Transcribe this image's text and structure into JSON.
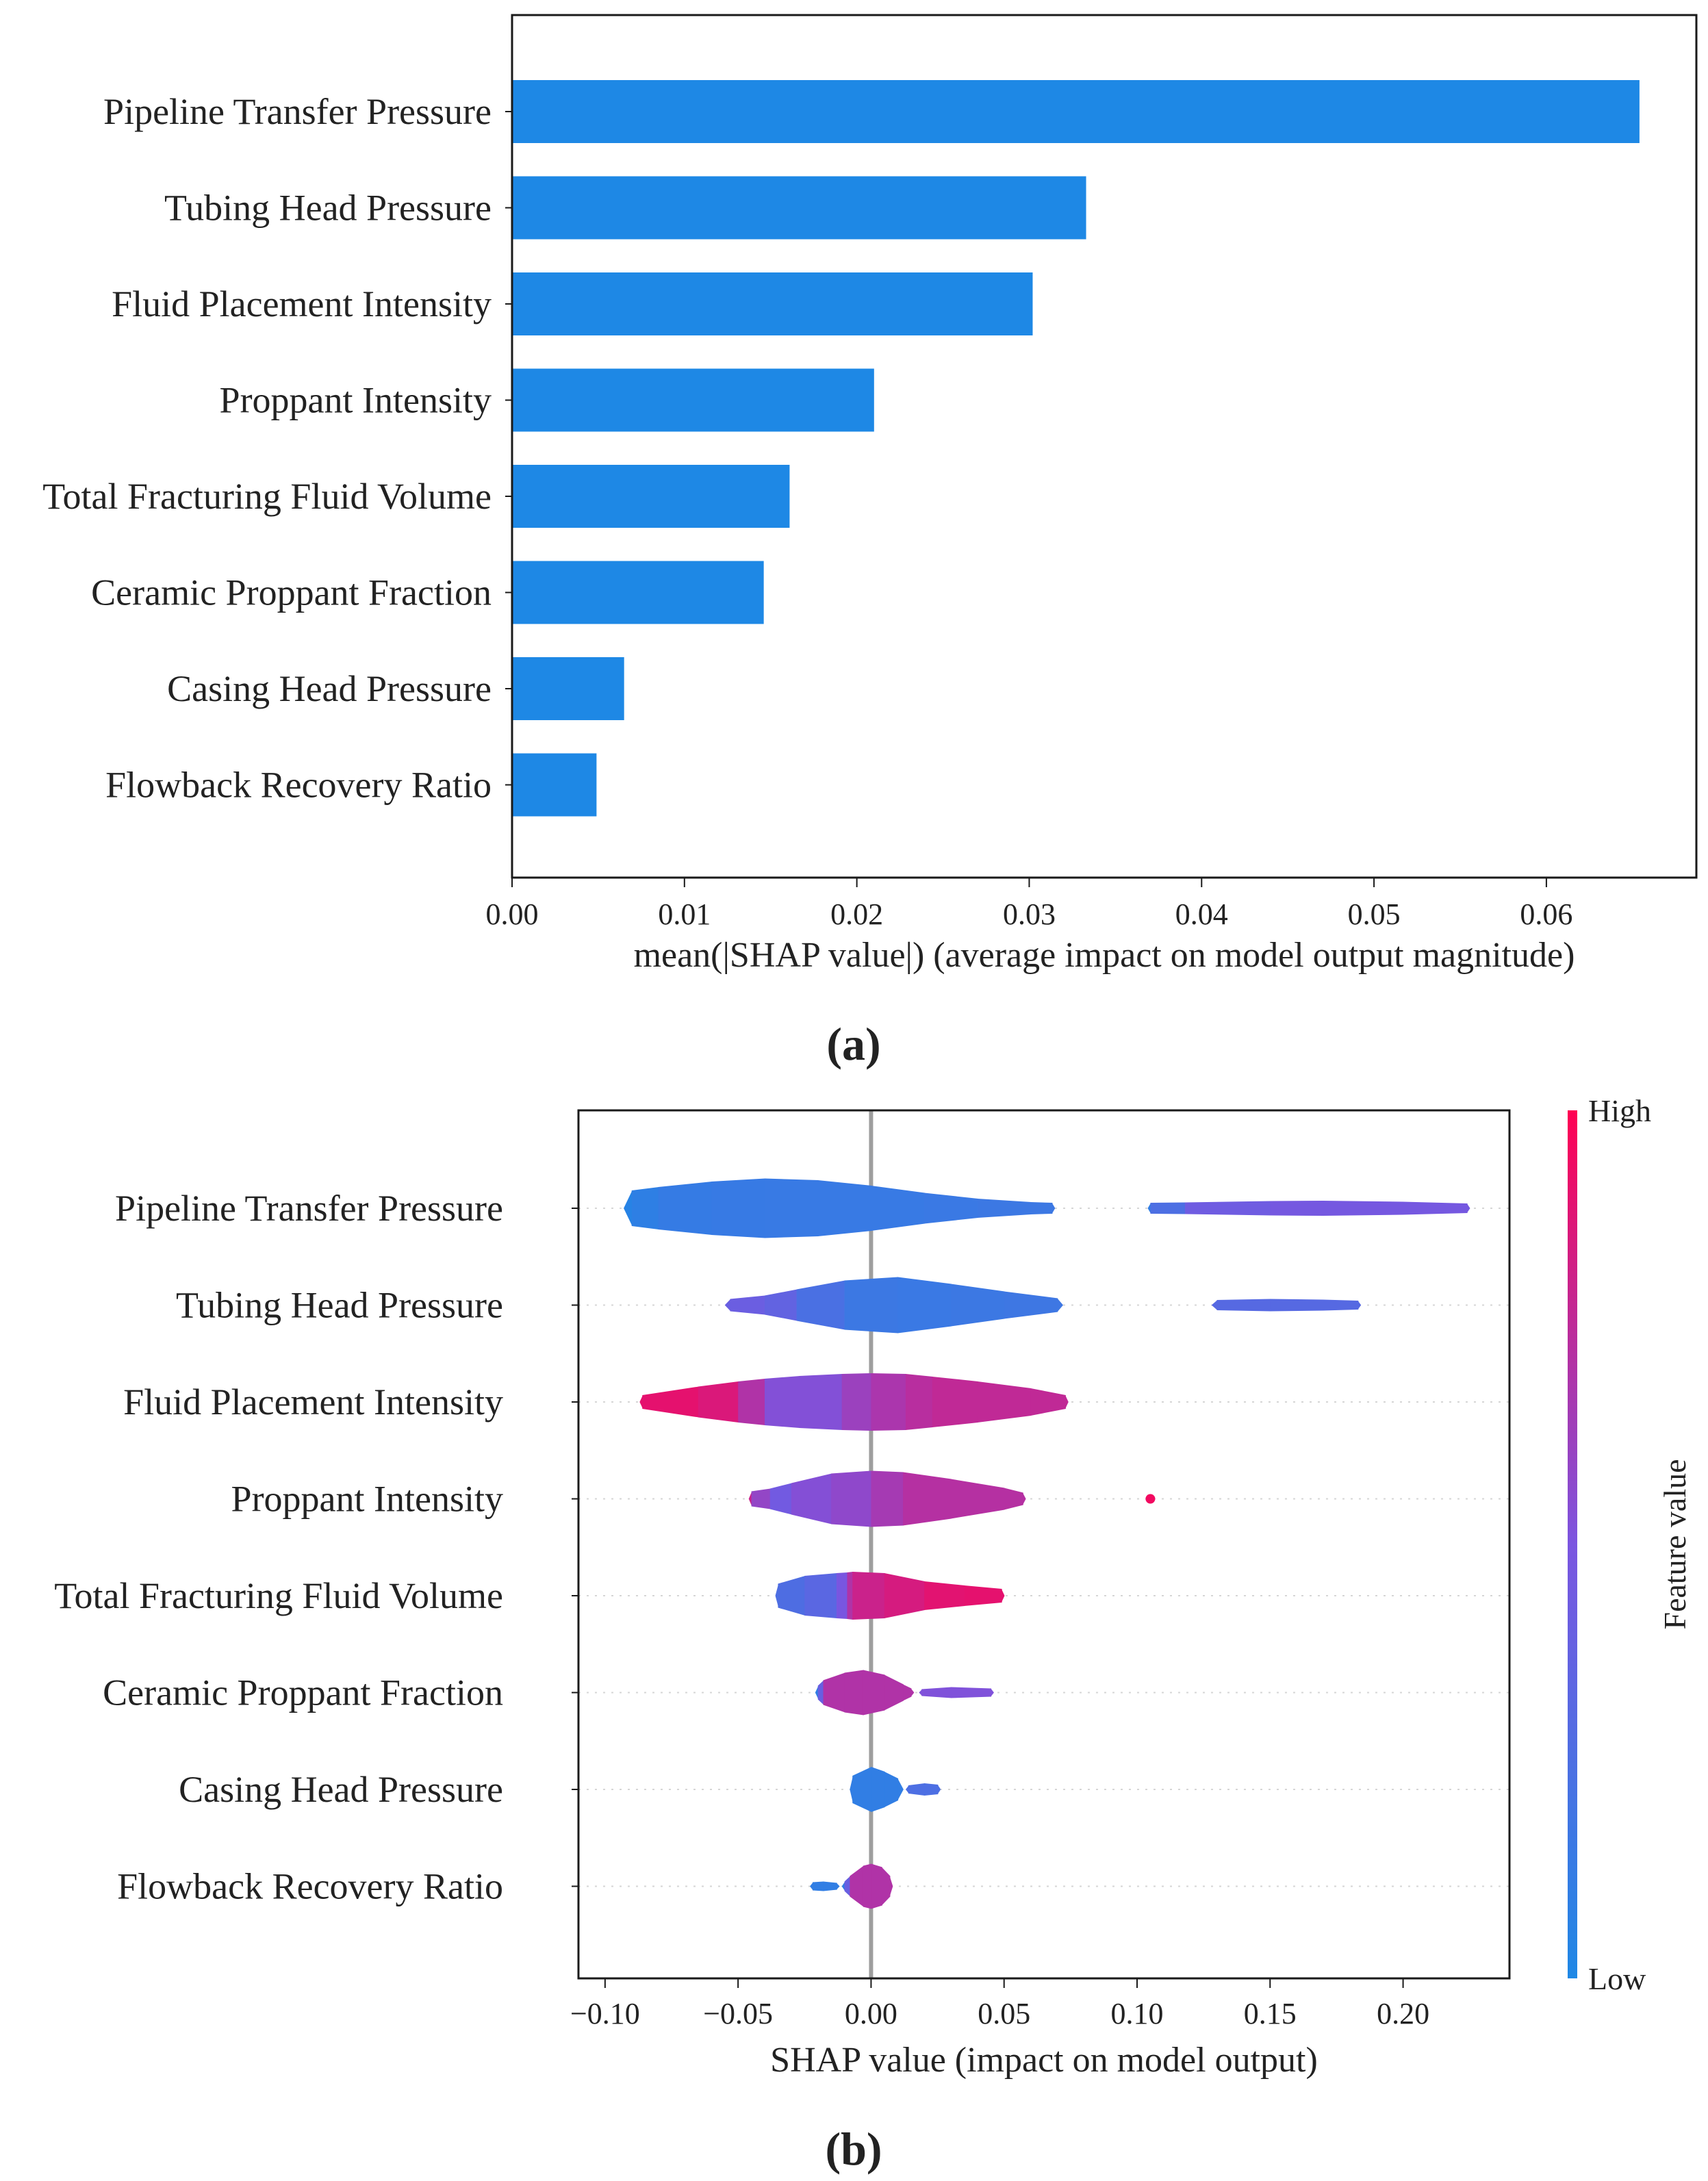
{
  "chart_data": [
    {
      "type": "bar",
      "orientation": "horizontal",
      "panel_label": "(a)",
      "categories": [
        "Pipeline Transfer Pressure",
        "Tubing Head Pressure",
        "Fluid Placement Intensity",
        "Proppant Intensity",
        "Total Fracturing Fluid Volume",
        "Ceramic Proppant Fraction",
        "Casing Head Pressure",
        "Flowback Recovery Ratio"
      ],
      "values": [
        0.0654,
        0.0333,
        0.0302,
        0.021,
        0.0161,
        0.0146,
        0.0065,
        0.0049
      ],
      "xlabel": "mean(|SHAP value|) (average impact on model output magnitude)",
      "ylabel": "",
      "xlim": [
        0,
        0.0687
      ],
      "xticks": [
        "0.00",
        "0.01",
        "0.02",
        "0.03",
        "0.04",
        "0.05",
        "0.06"
      ],
      "bar_color": "#1e88e5"
    },
    {
      "type": "violin",
      "panel_label": "(b)",
      "categories": [
        "Pipeline Transfer Pressure",
        "Tubing Head Pressure",
        "Fluid Placement Intensity",
        "Proppant Intensity",
        "Total Fracturing Fluid Volume",
        "Ceramic Proppant Fraction",
        "Casing Head Pressure",
        "Flowback Recovery Ratio"
      ],
      "xlabel": "SHAP value (impact on model output)",
      "xlim": [
        -0.11,
        0.24
      ],
      "xticks": [
        "−0.10",
        "−0.05",
        "0.00",
        "0.05",
        "0.10",
        "0.15",
        "0.20"
      ],
      "colorbar": {
        "label": "Feature value",
        "high_label": "High",
        "low_label": "Low",
        "low_color": "#1e88e5",
        "high_color": "#ff0052"
      },
      "violins": [
        [
          {
            "x": -0.093,
            "w": 0.0,
            "c": 0.05
          },
          {
            "x": -0.09,
            "w": 0.52,
            "c": 0.05
          },
          {
            "x": -0.08,
            "w": 0.62,
            "c": 0.12
          },
          {
            "x": -0.06,
            "w": 0.78,
            "c": 0.13
          },
          {
            "x": -0.04,
            "w": 0.87,
            "c": 0.14
          },
          {
            "x": -0.02,
            "w": 0.82,
            "c": 0.14
          },
          {
            "x": 0.0,
            "w": 0.66,
            "c": 0.14
          },
          {
            "x": 0.02,
            "w": 0.45,
            "c": 0.14
          },
          {
            "x": 0.04,
            "w": 0.28,
            "c": 0.16
          },
          {
            "x": 0.06,
            "w": 0.18,
            "c": 0.16
          },
          {
            "x": 0.068,
            "w": 0.16,
            "c": 0.16
          },
          {
            "x": 0.069,
            "w": 0.0,
            "c": 0.16
          }
        ],
        [
          {
            "x": 0.104,
            "w": 0.0,
            "c": 0.1
          },
          {
            "x": 0.105,
            "w": 0.16,
            "c": 0.1
          },
          {
            "x": 0.118,
            "w": 0.17,
            "c": 0.4
          },
          {
            "x": 0.15,
            "w": 0.21,
            "c": 0.47
          },
          {
            "x": 0.17,
            "w": 0.22,
            "c": 0.47
          },
          {
            "x": 0.2,
            "w": 0.19,
            "c": 0.47
          },
          {
            "x": 0.224,
            "w": 0.14,
            "c": 0.47
          },
          {
            "x": 0.225,
            "w": 0.0,
            "c": 0.47
          }
        ],
        [
          {
            "x": -0.055,
            "w": 0.0,
            "c": 0.4
          },
          {
            "x": -0.053,
            "w": 0.18,
            "c": 0.4
          },
          {
            "x": -0.04,
            "w": 0.28,
            "c": 0.43
          },
          {
            "x": -0.028,
            "w": 0.46,
            "c": 0.3
          },
          {
            "x": -0.01,
            "w": 0.72,
            "c": 0.17
          },
          {
            "x": 0.01,
            "w": 0.82,
            "c": 0.15
          },
          {
            "x": 0.03,
            "w": 0.62,
            "c": 0.15
          },
          {
            "x": 0.05,
            "w": 0.4,
            "c": 0.17
          },
          {
            "x": 0.07,
            "w": 0.2,
            "c": 0.17
          },
          {
            "x": 0.072,
            "w": 0.0,
            "c": 0.17
          }
        ],
        [
          {
            "x": 0.128,
            "w": 0.0,
            "c": 0.3
          },
          {
            "x": 0.13,
            "w": 0.15,
            "c": 0.3
          },
          {
            "x": 0.15,
            "w": 0.18,
            "c": 0.3
          },
          {
            "x": 0.17,
            "w": 0.16,
            "c": 0.3
          },
          {
            "x": 0.183,
            "w": 0.13,
            "c": 0.3
          },
          {
            "x": 0.184,
            "w": 0.0,
            "c": 0.3
          }
        ],
        [
          {
            "x": -0.087,
            "w": 0.0,
            "c": 0.9
          },
          {
            "x": -0.086,
            "w": 0.2,
            "c": 0.9
          },
          {
            "x": -0.065,
            "w": 0.45,
            "c": 0.9
          },
          {
            "x": -0.05,
            "w": 0.6,
            "c": 0.82
          },
          {
            "x": -0.04,
            "w": 0.68,
            "c": 0.58
          },
          {
            "x": -0.027,
            "w": 0.76,
            "c": 0.48
          },
          {
            "x": -0.011,
            "w": 0.82,
            "c": 0.58
          },
          {
            "x": 0.0,
            "w": 0.84,
            "c": 0.66
          },
          {
            "x": 0.013,
            "w": 0.82,
            "c": 0.7
          },
          {
            "x": 0.023,
            "w": 0.74,
            "c": 0.76
          },
          {
            "x": 0.04,
            "w": 0.6,
            "c": 0.76
          },
          {
            "x": 0.06,
            "w": 0.4,
            "c": 0.76
          },
          {
            "x": 0.073,
            "w": 0.2,
            "c": 0.76
          },
          {
            "x": 0.074,
            "w": 0.0,
            "c": 0.76
          }
        ],
        [
          {
            "x": -0.046,
            "w": 0.0,
            "c": 0.8
          },
          {
            "x": -0.045,
            "w": 0.22,
            "c": 0.8
          },
          {
            "x": -0.038,
            "w": 0.3,
            "c": 0.38
          },
          {
            "x": -0.03,
            "w": 0.46,
            "c": 0.52
          },
          {
            "x": -0.015,
            "w": 0.74,
            "c": 0.55
          },
          {
            "x": 0.0,
            "w": 0.82,
            "c": 0.6
          },
          {
            "x": 0.012,
            "w": 0.78,
            "c": 0.72
          },
          {
            "x": 0.03,
            "w": 0.58,
            "c": 0.72
          },
          {
            "x": 0.05,
            "w": 0.32,
            "c": 0.72
          },
          {
            "x": 0.057,
            "w": 0.18,
            "c": 0.72
          },
          {
            "x": 0.058,
            "w": 0.0,
            "c": 0.72
          }
        ],
        [
          {
            "x": -0.036,
            "w": 0.0,
            "c": 0.25
          },
          {
            "x": -0.035,
            "w": 0.35,
            "c": 0.25
          },
          {
            "x": -0.025,
            "w": 0.58,
            "c": 0.27
          },
          {
            "x": -0.013,
            "w": 0.66,
            "c": 0.38
          },
          {
            "x": -0.009,
            "w": 0.68,
            "c": 0.6
          },
          {
            "x": -0.007,
            "w": 0.7,
            "c": 0.8
          },
          {
            "x": 0.005,
            "w": 0.66,
            "c": 0.8
          },
          {
            "x": 0.02,
            "w": 0.42,
            "c": 0.88
          },
          {
            "x": 0.035,
            "w": 0.3,
            "c": 0.9
          },
          {
            "x": 0.049,
            "w": 0.2,
            "c": 0.9
          },
          {
            "x": 0.05,
            "w": 0.0,
            "c": 0.9
          }
        ],
        [
          {
            "x": -0.021,
            "w": 0.0,
            "c": 0.1
          },
          {
            "x": -0.02,
            "w": 0.2,
            "c": 0.1
          },
          {
            "x": -0.018,
            "w": 0.36,
            "c": 0.7
          },
          {
            "x": -0.01,
            "w": 0.58,
            "c": 0.7
          },
          {
            "x": -0.003,
            "w": 0.66,
            "c": 0.7
          },
          {
            "x": 0.005,
            "w": 0.52,
            "c": 0.7
          },
          {
            "x": 0.012,
            "w": 0.24,
            "c": 0.7
          },
          {
            "x": 0.015,
            "w": 0.12,
            "c": 0.7
          },
          {
            "x": 0.016,
            "w": 0.0,
            "c": 0.7
          }
        ],
        [
          {
            "x": 0.018,
            "w": 0.0,
            "c": 0.52
          },
          {
            "x": 0.019,
            "w": 0.1,
            "c": 0.52
          },
          {
            "x": 0.03,
            "w": 0.16,
            "c": 0.52
          },
          {
            "x": 0.045,
            "w": 0.12,
            "c": 0.52
          },
          {
            "x": 0.046,
            "w": 0.0,
            "c": 0.52
          }
        ],
        [
          {
            "x": -0.008,
            "w": 0.0,
            "c": 0.1
          },
          {
            "x": -0.007,
            "w": 0.4,
            "c": 0.1
          },
          {
            "x": 0.0,
            "w": 0.66,
            "c": 0.1
          },
          {
            "x": 0.005,
            "w": 0.52,
            "c": 0.1
          },
          {
            "x": 0.01,
            "w": 0.32,
            "c": 0.1
          },
          {
            "x": 0.012,
            "w": 0.0,
            "c": 0.1
          }
        ],
        [
          {
            "x": 0.013,
            "w": 0.0,
            "c": 0.25
          },
          {
            "x": 0.014,
            "w": 0.12,
            "c": 0.25
          },
          {
            "x": 0.02,
            "w": 0.18,
            "c": 0.25
          },
          {
            "x": 0.025,
            "w": 0.14,
            "c": 0.25
          },
          {
            "x": 0.026,
            "w": 0.0,
            "c": 0.25
          }
        ],
        [
          {
            "x": -0.023,
            "w": 0.0,
            "c": 0.1
          },
          {
            "x": -0.022,
            "w": 0.12,
            "c": 0.1
          },
          {
            "x": -0.018,
            "w": 0.14,
            "c": 0.1
          },
          {
            "x": -0.013,
            "w": 0.1,
            "c": 0.1
          },
          {
            "x": -0.012,
            "w": 0.0,
            "c": 0.1
          }
        ],
        [
          {
            "x": -0.011,
            "w": 0.0,
            "c": 0.1
          },
          {
            "x": -0.01,
            "w": 0.14,
            "c": 0.1
          },
          {
            "x": -0.008,
            "w": 0.3,
            "c": 0.7
          },
          {
            "x": -0.003,
            "w": 0.6,
            "c": 0.7
          },
          {
            "x": 0.0,
            "w": 0.66,
            "c": 0.7
          },
          {
            "x": 0.004,
            "w": 0.56,
            "c": 0.7
          },
          {
            "x": 0.007,
            "w": 0.3,
            "c": 0.7
          },
          {
            "x": 0.008,
            "w": 0.0,
            "c": 0.7
          }
        ]
      ],
      "violin_rows": [
        0,
        0,
        1,
        1,
        2,
        3,
        4,
        5,
        5,
        6,
        6,
        7,
        7
      ],
      "points": [
        {
          "row": 3,
          "x": 0.105,
          "c": 0.95
        }
      ]
    }
  ]
}
